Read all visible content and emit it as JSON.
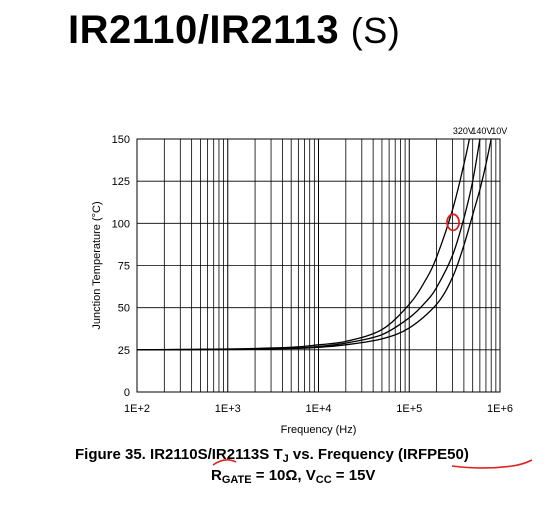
{
  "title": {
    "main": "IR2110/IR2113",
    "suffix": "(S)"
  },
  "caption": {
    "line1_prefix": "Figure 35.  IR2110S/IR2113S T",
    "line1_sub": "J",
    "line1_suffix": " vs. Frequency (IRFPE50)",
    "line2_r": "R",
    "line2_r_sub": "GATE",
    "line2_mid": " = 10Ω, V",
    "line2_v_sub": "CC",
    "line2_end": " = 15V"
  },
  "colors": {
    "grid": "#000000",
    "curve": "#000000",
    "annotation": "#e0201a"
  },
  "chart_data": {
    "type": "line",
    "xscale": "log",
    "xlim": [
      100,
      1000000
    ],
    "ylim": [
      0,
      150
    ],
    "xlabel": "Frequency (Hz)",
    "ylabel": "Junction Temperature (°C)",
    "xticks": [
      {
        "value": 100,
        "label": "1E+2"
      },
      {
        "value": 1000,
        "label": "1E+3"
      },
      {
        "value": 10000,
        "label": "1E+4"
      },
      {
        "value": 100000,
        "label": "1E+5"
      },
      {
        "value": 1000000,
        "label": "1E+6"
      }
    ],
    "yticks": [
      {
        "value": 0,
        "label": "0"
      },
      {
        "value": 25,
        "label": "25"
      },
      {
        "value": 50,
        "label": "50"
      },
      {
        "value": 75,
        "label": "75"
      },
      {
        "value": 100,
        "label": "100"
      },
      {
        "value": 125,
        "label": "125"
      },
      {
        "value": 150,
        "label": "150"
      }
    ],
    "grid": true,
    "series": [
      {
        "name": "320V",
        "x": [
          100,
          1000,
          5000,
          10000,
          20000,
          50000,
          100000,
          150000,
          200000,
          300000,
          400000,
          460000
        ],
        "y": [
          25,
          25.5,
          26.5,
          28,
          30,
          37,
          52,
          66,
          80,
          108,
          135,
          150
        ]
      },
      {
        "name": "140V",
        "x": [
          100,
          1000,
          5000,
          10000,
          20000,
          50000,
          100000,
          150000,
          200000,
          300000,
          400000,
          500000,
          600000
        ],
        "y": [
          25,
          25.3,
          26,
          27,
          29,
          34,
          44,
          53,
          62,
          81,
          103,
          125,
          150
        ]
      },
      {
        "name": "10V",
        "x": [
          100,
          1000,
          5000,
          10000,
          20000,
          50000,
          100000,
          200000,
          300000,
          400000,
          500000,
          600000,
          700000,
          800000
        ],
        "y": [
          25,
          25.2,
          25.8,
          26.5,
          28,
          31.5,
          38,
          52,
          68,
          87,
          105,
          120,
          135,
          150
        ]
      }
    ],
    "annotations": [
      {
        "type": "circle",
        "x": 300000,
        "y": 100,
        "color": "#e0201a"
      }
    ]
  }
}
